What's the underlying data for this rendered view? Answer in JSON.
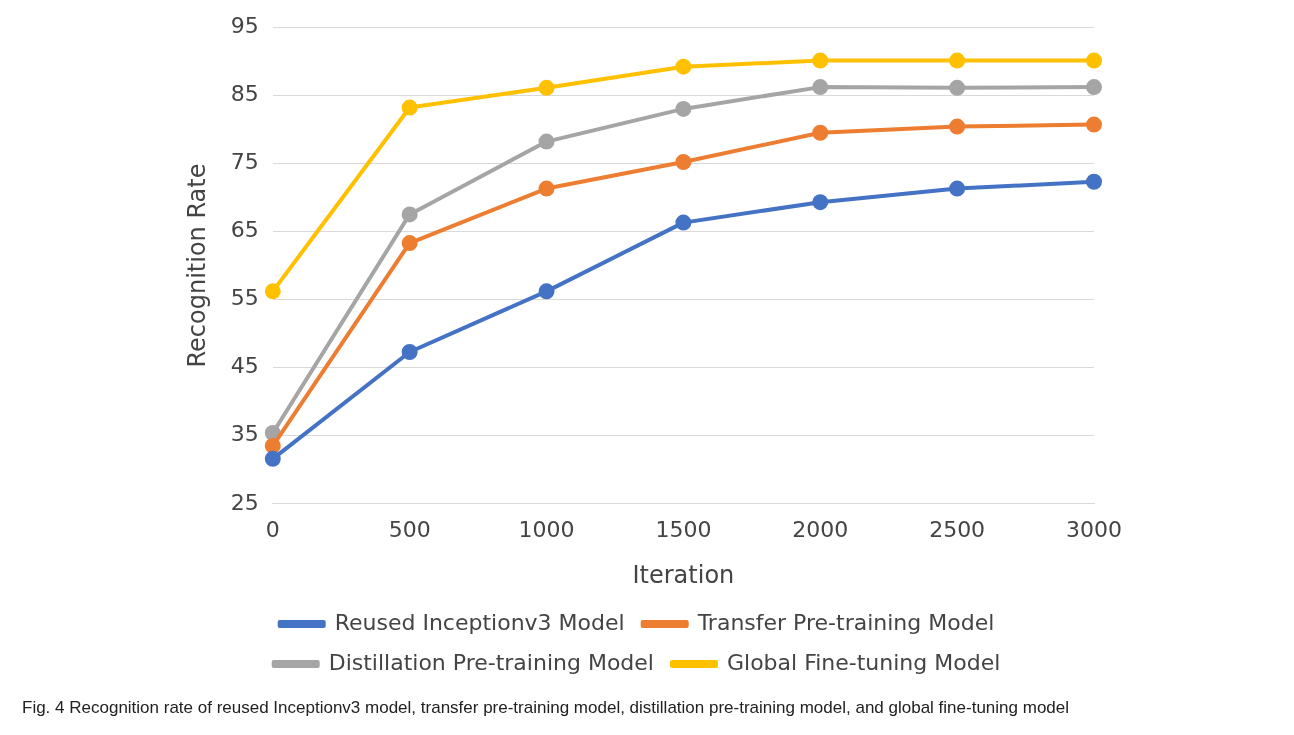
{
  "chart_data": {
    "type": "line",
    "xlabel": "Iteration",
    "ylabel": "Recognition Rate",
    "categories": [
      "0",
      "500",
      "1000",
      "1500",
      "2000",
      "2500",
      "3000"
    ],
    "ylim": [
      25,
      95
    ],
    "yticks": [
      25,
      35,
      45,
      55,
      65,
      75,
      85,
      95
    ],
    "grid": "y",
    "legend": "bottom",
    "marker": "circle",
    "line_style": "solid",
    "series": [
      {
        "name": "Reused Inceptionv3 Model",
        "color": "#4472c4",
        "values": [
          31.6,
          47.3,
          56.2,
          66.3,
          69.3,
          71.3,
          72.3
        ]
      },
      {
        "name": "Transfer Pre-training Model",
        "color": "#ed7d31",
        "values": [
          33.5,
          63.3,
          71.3,
          75.2,
          79.5,
          80.4,
          80.7
        ]
      },
      {
        "name": "Distillation Pre-training Model",
        "color": "#a5a5a5",
        "values": [
          35.4,
          67.5,
          78.2,
          83.0,
          86.2,
          86.1,
          86.2
        ]
      },
      {
        "name": "Global Fine-tuning Model",
        "color": "#ffc000",
        "values": [
          56.2,
          83.2,
          86.1,
          89.2,
          90.1,
          90.1,
          90.1
        ]
      }
    ],
    "annotations": [
      "Fig. 4 Recognition rate of reused Inceptionv3 model, transfer pre-training model, distillation pre-training model, and global fine-tuning model"
    ]
  }
}
